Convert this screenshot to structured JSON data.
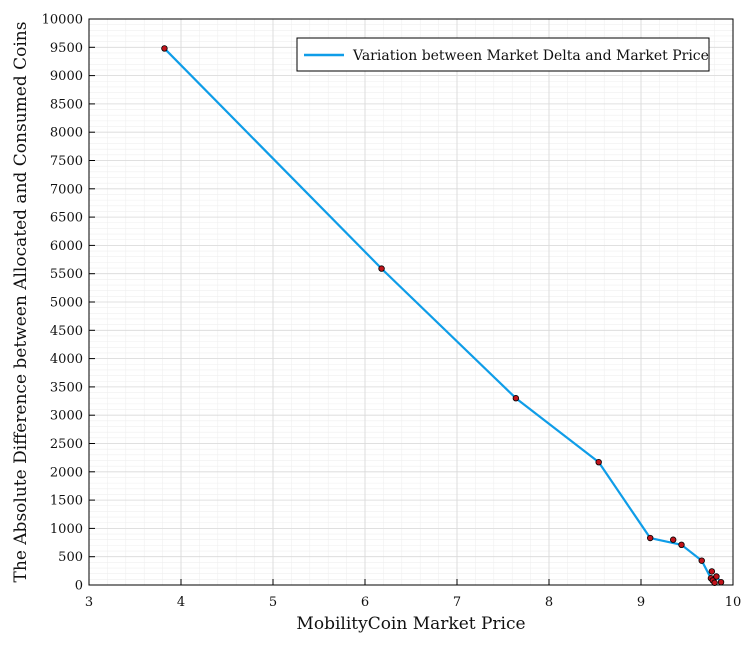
{
  "chart_data": {
    "type": "line",
    "title": "",
    "xlabel": "MobilityCoin Market Price",
    "ylabel": "The Absolute Difference between Allocated and Consumed Coins",
    "xlim": [
      3,
      10
    ],
    "ylim": [
      0,
      10000
    ],
    "x_ticks": [
      "3",
      "4",
      "5",
      "6",
      "7",
      "8",
      "9",
      "10"
    ],
    "y_ticks": [
      "0",
      "500",
      "1000",
      "1500",
      "2000",
      "2500",
      "3000",
      "3500",
      "4000",
      "4500",
      "5000",
      "5500",
      "6000",
      "6500",
      "7000",
      "7500",
      "8000",
      "8500",
      "9000",
      "9500",
      "10000"
    ],
    "grid": true,
    "legend_position": "top-right",
    "series": [
      {
        "name": "Variation between Market Delta and Market Price",
        "color": "#0f9de8",
        "marker_color": "#c0141b",
        "x": [
          3.82,
          6.18,
          7.64,
          8.54,
          9.1,
          9.44,
          9.66,
          9.76,
          9.78,
          9.8,
          9.82,
          9.87
        ],
        "y": [
          9480,
          5590,
          3300,
          2170,
          830,
          710,
          430,
          120,
          80,
          40,
          150,
          50
        ]
      },
      {
        "name": "",
        "color": "#c0141b",
        "markers_only": true,
        "x": [
          9.35,
          9.77
        ],
        "y": [
          800,
          240
        ]
      }
    ]
  }
}
